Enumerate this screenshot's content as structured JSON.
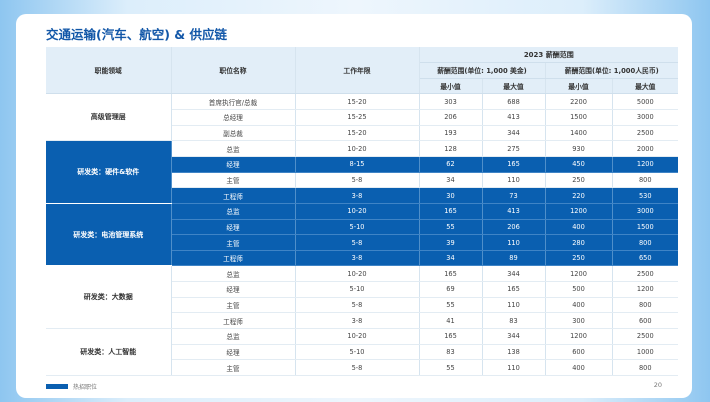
{
  "title": "交通运输(汽车、航空) & 供应链",
  "header": {
    "col_area": "职能领域",
    "col_position": "职位名称",
    "col_years": "工作年限",
    "group": "2023 薪酬范围",
    "usd": "薪酬范围(单位: 1,000 美金)",
    "rmb": "薪酬范围(单位: 1,000人民币)",
    "min": "最小值",
    "max": "最大值"
  },
  "groups": [
    {
      "area": "高级管理层",
      "hot": false,
      "rows": [
        {
          "position": "首席执行官/总裁",
          "years": "15-20",
          "usd_min": "303",
          "usd_max": "688",
          "rmb_min": "2200",
          "rmb_max": "5000",
          "hot": false
        },
        {
          "position": "总经理",
          "years": "15-25",
          "usd_min": "206",
          "usd_max": "413",
          "rmb_min": "1500",
          "rmb_max": "3000",
          "hot": false
        },
        {
          "position": "副总裁",
          "years": "15-20",
          "usd_min": "193",
          "usd_max": "344",
          "rmb_min": "1400",
          "rmb_max": "2500",
          "hot": false
        }
      ]
    },
    {
      "area": "研发类：硬件&软件",
      "hot": true,
      "rows": [
        {
          "position": "总监",
          "years": "10-20",
          "usd_min": "128",
          "usd_max": "275",
          "rmb_min": "930",
          "rmb_max": "2000",
          "hot": false
        },
        {
          "position": "经理",
          "years": "8-15",
          "usd_min": "62",
          "usd_max": "165",
          "rmb_min": "450",
          "rmb_max": "1200",
          "hot": true
        },
        {
          "position": "主管",
          "years": "5-8",
          "usd_min": "34",
          "usd_max": "110",
          "rmb_min": "250",
          "rmb_max": "800",
          "hot": false
        },
        {
          "position": "工程师",
          "years": "3-8",
          "usd_min": "30",
          "usd_max": "73",
          "rmb_min": "220",
          "rmb_max": "530",
          "hot": true
        }
      ]
    },
    {
      "area": "研发类：电池管理系统",
      "hot": true,
      "rows": [
        {
          "position": "总监",
          "years": "10-20",
          "usd_min": "165",
          "usd_max": "413",
          "rmb_min": "1200",
          "rmb_max": "3000",
          "hot": true
        },
        {
          "position": "经理",
          "years": "5-10",
          "usd_min": "55",
          "usd_max": "206",
          "rmb_min": "400",
          "rmb_max": "1500",
          "hot": true
        },
        {
          "position": "主管",
          "years": "5-8",
          "usd_min": "39",
          "usd_max": "110",
          "rmb_min": "280",
          "rmb_max": "800",
          "hot": true
        },
        {
          "position": "工程师",
          "years": "3-8",
          "usd_min": "34",
          "usd_max": "89",
          "rmb_min": "250",
          "rmb_max": "650",
          "hot": true
        }
      ]
    },
    {
      "area": "研发类：大数据",
      "hot": false,
      "rows": [
        {
          "position": "总监",
          "years": "10-20",
          "usd_min": "165",
          "usd_max": "344",
          "rmb_min": "1200",
          "rmb_max": "2500",
          "hot": false
        },
        {
          "position": "经理",
          "years": "5-10",
          "usd_min": "69",
          "usd_max": "165",
          "rmb_min": "500",
          "rmb_max": "1200",
          "hot": false
        },
        {
          "position": "主管",
          "years": "5-8",
          "usd_min": "55",
          "usd_max": "110",
          "rmb_min": "400",
          "rmb_max": "800",
          "hot": false
        },
        {
          "position": "工程师",
          "years": "3-8",
          "usd_min": "41",
          "usd_max": "83",
          "rmb_min": "300",
          "rmb_max": "600",
          "hot": false
        }
      ]
    },
    {
      "area": "研发类：人工智能",
      "hot": false,
      "rows": [
        {
          "position": "总监",
          "years": "10-20",
          "usd_min": "165",
          "usd_max": "344",
          "rmb_min": "1200",
          "rmb_max": "2500",
          "hot": false
        },
        {
          "position": "经理",
          "years": "5-10",
          "usd_min": "83",
          "usd_max": "138",
          "rmb_min": "600",
          "rmb_max": "1000",
          "hot": false
        },
        {
          "position": "主管",
          "years": "5-8",
          "usd_min": "55",
          "usd_max": "110",
          "rmb_min": "400",
          "rmb_max": "800",
          "hot": false
        }
      ]
    }
  ],
  "legend": "热招职位",
  "page_number": "20",
  "colors": {
    "hot": "#0a5fb0",
    "header_bg": "#e2eef8",
    "title": "#1257a8"
  }
}
